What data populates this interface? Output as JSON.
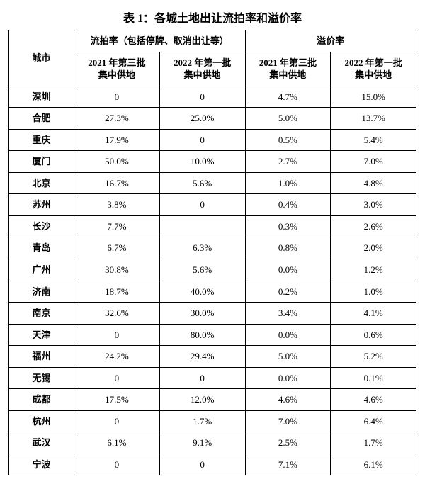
{
  "title": "表 1：各城土地出让流拍率和溢价率",
  "header": {
    "city": "城市",
    "group1": "流拍率（包括停牌、取消出让等）",
    "group2": "溢价率",
    "sub_a_line1": "2021 年第三批",
    "sub_a_line2": "集中供地",
    "sub_b_line1": "2022 年第一批",
    "sub_b_line2": "集中供地",
    "sub_c_line1": "2021 年第三批",
    "sub_c_line2": "集中供地",
    "sub_d_line1": "2022 年第一批",
    "sub_d_line2": "集中供地"
  },
  "rows": [
    {
      "city": "深圳",
      "a": "0",
      "b": "0",
      "c": "4.7%",
      "d": "15.0%"
    },
    {
      "city": "合肥",
      "a": "27.3%",
      "b": "25.0%",
      "c": "5.0%",
      "d": "13.7%"
    },
    {
      "city": "重庆",
      "a": "17.9%",
      "b": "0",
      "c": "0.5%",
      "d": "5.4%"
    },
    {
      "city": "厦门",
      "a": "50.0%",
      "b": "10.0%",
      "c": "2.7%",
      "d": "7.0%"
    },
    {
      "city": "北京",
      "a": "16.7%",
      "b": "5.6%",
      "c": "1.0%",
      "d": "4.8%"
    },
    {
      "city": "苏州",
      "a": "3.8%",
      "b": "0",
      "c": "0.4%",
      "d": "3.0%"
    },
    {
      "city": "长沙",
      "a": "7.7%",
      "b": "",
      "c": "0.3%",
      "d": "2.6%"
    },
    {
      "city": "青岛",
      "a": "6.7%",
      "b": "6.3%",
      "c": "0.8%",
      "d": "2.0%"
    },
    {
      "city": "广州",
      "a": "30.8%",
      "b": "5.6%",
      "c": "0.0%",
      "d": "1.2%"
    },
    {
      "city": "济南",
      "a": "18.7%",
      "b": "40.0%",
      "c": "0.2%",
      "d": "1.0%"
    },
    {
      "city": "南京",
      "a": "32.6%",
      "b": "30.0%",
      "c": "3.4%",
      "d": "4.1%"
    },
    {
      "city": "天津",
      "a": "0",
      "b": "80.0%",
      "c": "0.0%",
      "d": "0.6%"
    },
    {
      "city": "福州",
      "a": "24.2%",
      "b": "29.4%",
      "c": "5.0%",
      "d": "5.2%"
    },
    {
      "city": "无锡",
      "a": "0",
      "b": "0",
      "c": "0.0%",
      "d": "0.1%"
    },
    {
      "city": "成都",
      "a": "17.5%",
      "b": "12.0%",
      "c": "4.6%",
      "d": "4.6%"
    },
    {
      "city": "杭州",
      "a": "0",
      "b": "1.7%",
      "c": "7.0%",
      "d": "6.4%"
    },
    {
      "city": "武汉",
      "a": "6.1%",
      "b": "9.1%",
      "c": "2.5%",
      "d": "1.7%"
    },
    {
      "city": "宁波",
      "a": "0",
      "b": "0",
      "c": "7.1%",
      "d": "6.1%"
    }
  ]
}
